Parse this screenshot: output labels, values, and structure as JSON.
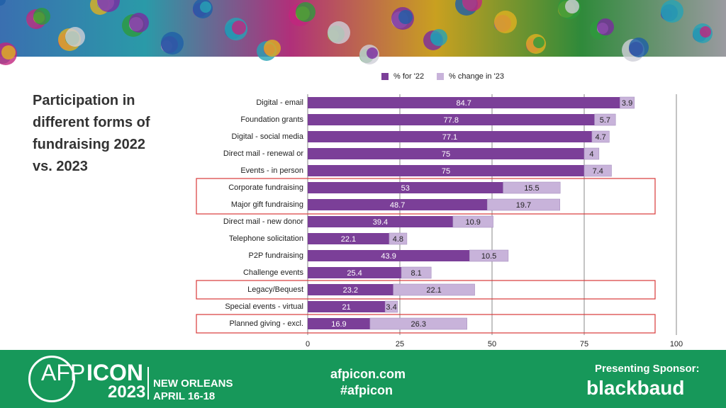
{
  "chart_data": {
    "type": "bar",
    "orientation": "horizontal",
    "stacked": true,
    "title": "Participation in different forms of fundraising 2022 vs. 2023",
    "categories": [
      "Digital - email",
      "Foundation grants",
      "Digital - social media",
      "Direct mail - renewal or",
      "Events - in person",
      "Corporate fundraising",
      "Major gift fundraising",
      "Direct mail - new donor",
      "Telephone solicitation",
      "P2P fundraising",
      "Challenge events",
      "Legacy/Bequest",
      "Special events - virtual",
      "Planned giving - excl."
    ],
    "series": [
      {
        "name": "% for '22",
        "color": "#7b3f98",
        "values": [
          84.7,
          77.8,
          77.1,
          75,
          75,
          53,
          48.7,
          39.4,
          22.1,
          43.9,
          25.4,
          23.2,
          21,
          16.9
        ]
      },
      {
        "name": "% change in '23",
        "color": "#c8b3da",
        "values": [
          3.9,
          5.7,
          4.7,
          4,
          7.4,
          15.5,
          19.7,
          10.9,
          4.8,
          10.5,
          8.1,
          22.1,
          3.4,
          26.3
        ]
      }
    ],
    "xlim": [
      0,
      100
    ],
    "xticks": [
      0,
      25,
      50,
      75,
      100
    ],
    "grid": true,
    "legend": "top"
  },
  "footer": {
    "brand": "AFP",
    "brand_bold": "ICON",
    "year": "2023",
    "city": "NEW ORLEANS",
    "dates": "APRIL 16-18",
    "website": "afpicon.com",
    "hashtag": "#afpicon",
    "sponsor_label": "Presenting Sponsor:",
    "sponsor": "blackbaud"
  }
}
